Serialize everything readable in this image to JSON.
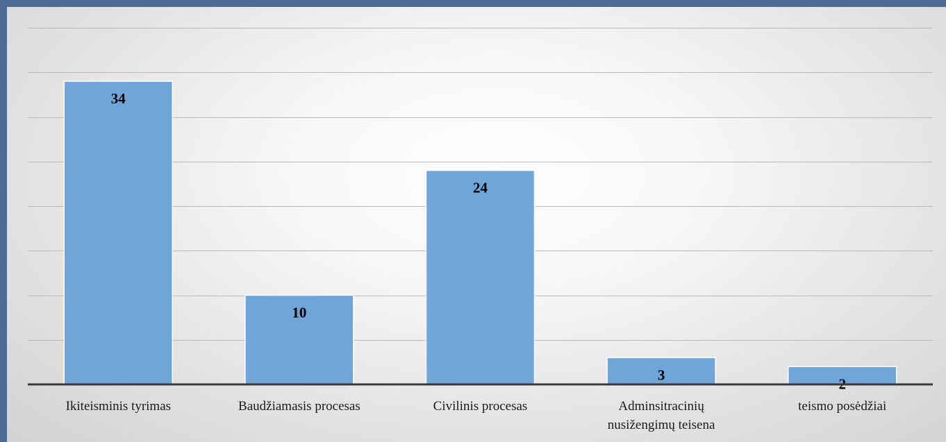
{
  "chart_data": {
    "type": "bar",
    "title": "",
    "xlabel": "",
    "ylabel": "",
    "categories": [
      "Ikiteisminis tyrimas",
      "Baudžiamasis procesas",
      "Civilinis procesas",
      "Adminsitracinių nusižengimų teisena",
      "teismo posėdžiai"
    ],
    "category_lines": [
      [
        "Ikiteisminis tyrimas"
      ],
      [
        "Baudžiamasis procesas"
      ],
      [
        "Civilinis procesas"
      ],
      [
        "Adminsitracinių",
        "nusižengimų teisena"
      ],
      [
        "teismo posėdžiai"
      ]
    ],
    "values": [
      34,
      10,
      24,
      3,
      2
    ],
    "ylim": [
      0,
      40
    ],
    "y_gridline_step": 5,
    "grid": true,
    "legend": "none",
    "colors": {
      "bar": "#6fa5d8",
      "background": "#4c6a94"
    }
  }
}
